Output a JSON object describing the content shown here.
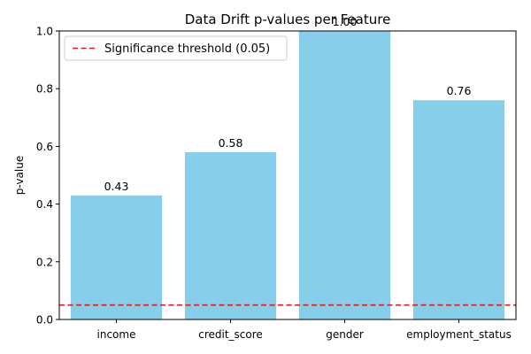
{
  "chart_data": {
    "type": "bar",
    "title": "Data Drift p-values per Feature",
    "xlabel": "",
    "ylabel": "p-value",
    "categories": [
      "income",
      "credit_score",
      "gender",
      "employment_status"
    ],
    "values": [
      0.43,
      0.58,
      1.0,
      0.76
    ],
    "value_labels": [
      "0.43",
      "0.58",
      "1.00",
      "0.76"
    ],
    "ylim": [
      0,
      1.0
    ],
    "yticks": [
      0.0,
      0.2,
      0.4,
      0.6,
      0.8,
      1.0
    ],
    "ytick_labels": [
      "0.0",
      "0.2",
      "0.4",
      "0.6",
      "0.8",
      "1.0"
    ],
    "threshold": {
      "value": 0.05,
      "label": "Significance threshold (0.05)",
      "color": "#e31a1c",
      "style": "dashed"
    },
    "bar_color": "#87ceeb",
    "grid": false,
    "legend_position": "upper-left"
  }
}
